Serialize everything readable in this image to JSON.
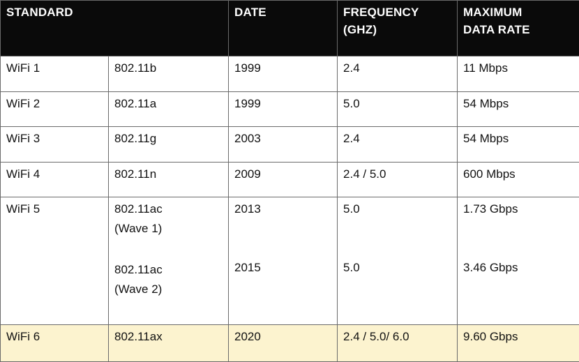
{
  "header": {
    "standard": "STANDARD",
    "date": "DATE",
    "frequency_line1": "FREQUENCY",
    "frequency_line2": "(GHZ)",
    "max_rate_line1": "MAXIMUM",
    "max_rate_line2": "DATA RATE"
  },
  "rows": [
    {
      "wifi": "WiFi 1",
      "standard": "802.11b",
      "date": "1999",
      "freq": "2.4",
      "rate": "11 Mbps"
    },
    {
      "wifi": "WiFi 2",
      "standard": "802.11a",
      "date": "1999",
      "freq": "5.0",
      "rate": "54 Mbps"
    },
    {
      "wifi": "WiFi 3",
      "standard": "802.11g",
      "date": "2003",
      "freq": "2.4",
      "rate": "54 Mbps"
    },
    {
      "wifi": "WiFi 4",
      "standard": "802.11n",
      "date": "2009",
      "freq": "2.4 / 5.0",
      "rate": "600 Mbps"
    }
  ],
  "wifi5": {
    "wifi": "WiFi 5",
    "wave1": {
      "std_line1": "802.11ac",
      "std_line2": "(Wave 1)",
      "date": "2013",
      "freq": "5.0",
      "rate": "1.73 Gbps"
    },
    "wave2": {
      "std_line1": "802.11ac",
      "std_line2": "(Wave 2)",
      "date": "2015",
      "freq": "5.0",
      "rate": "3.46 Gbps"
    }
  },
  "wifi6": {
    "wifi": "WiFi 6",
    "standard": "802.11ax",
    "date": "2020",
    "freq": "2.4 / 5.0/ 6.0",
    "rate": "9.60 Gbps"
  },
  "colors": {
    "header_bg": "#0a0a0a",
    "header_text": "#ffffff",
    "highlight_row": "#fcf3cf",
    "border": "#6a6a6a"
  }
}
